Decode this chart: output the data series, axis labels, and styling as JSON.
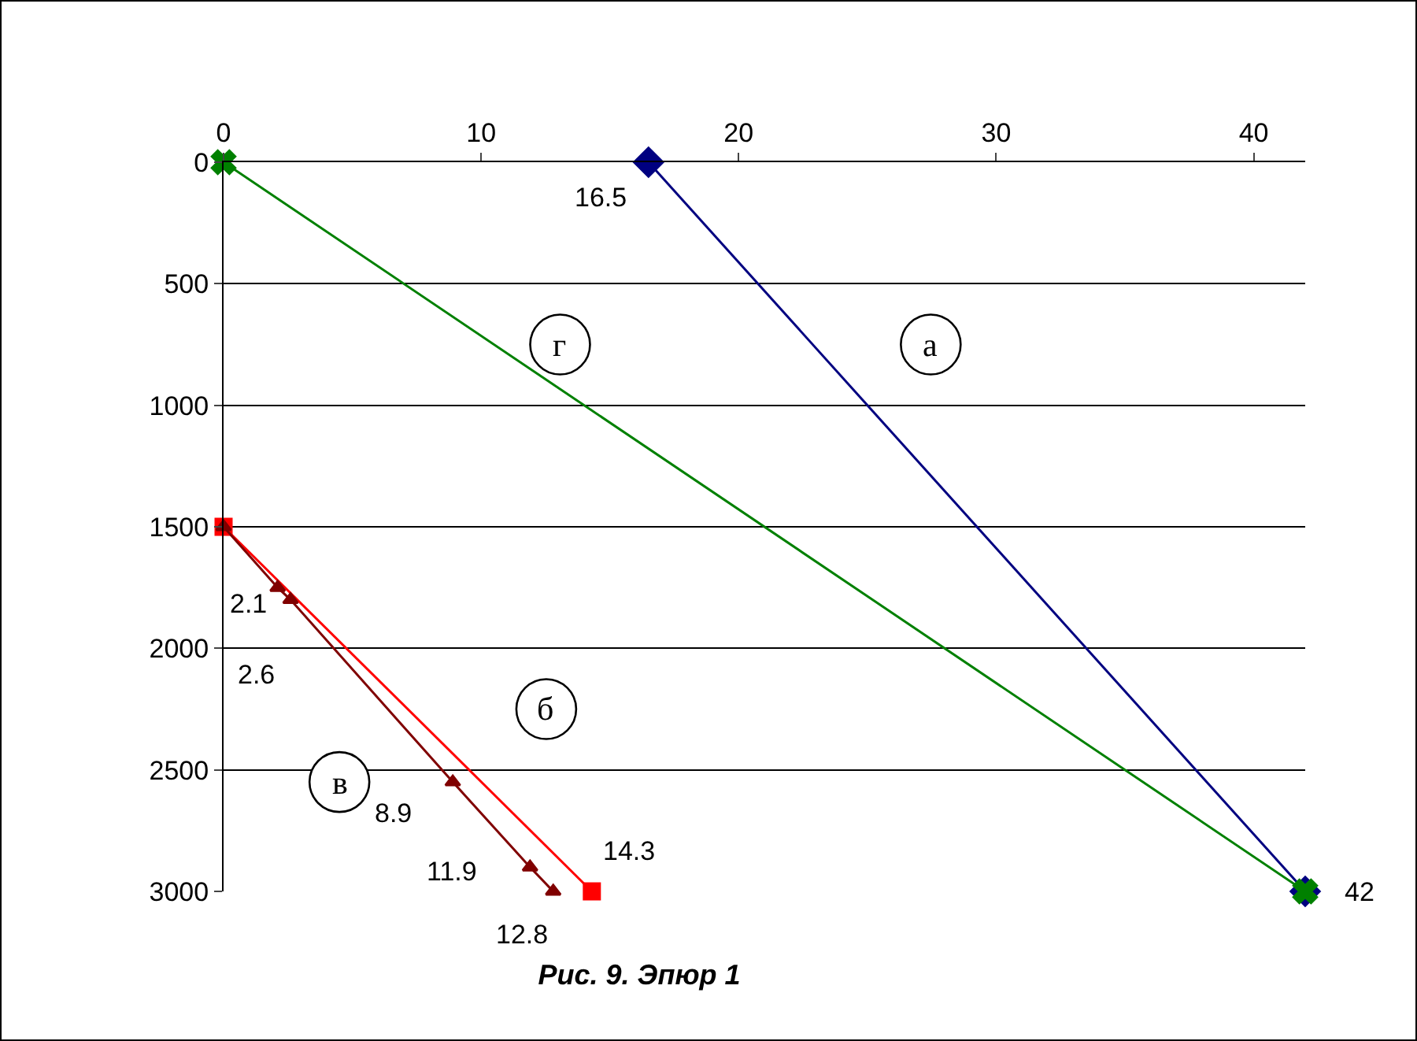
{
  "chart_data": {
    "type": "line",
    "title": "Рис. 9. Эпюр 1",
    "xlim": [
      0,
      42
    ],
    "xticks": [
      0,
      10,
      20,
      30,
      40
    ],
    "ylim": [
      3000,
      0
    ],
    "yticks": [
      0,
      500,
      1000,
      1500,
      2000,
      2500,
      3000
    ],
    "grid": "y",
    "legend": false,
    "series": [
      {
        "name": "а",
        "color": "#000080",
        "marker": "diamond",
        "x": [
          16.5,
          42
        ],
        "values": [
          0,
          3000
        ]
      },
      {
        "name": "г",
        "color": "#008000",
        "marker": "cross",
        "x": [
          0,
          42
        ],
        "values": [
          0,
          3000
        ]
      },
      {
        "name": "б",
        "color": "#ff0000",
        "marker": "square",
        "x": [
          0,
          14.3
        ],
        "values": [
          1500,
          3000
        ]
      },
      {
        "name": "в",
        "color": "#800000",
        "marker": "triangle",
        "x": [
          0,
          2.1,
          2.6,
          8.9,
          11.9,
          12.8
        ],
        "values": [
          1500,
          1750,
          1800,
          2550,
          2900,
          3000
        ]
      }
    ],
    "annotations": [
      {
        "text": "16.5",
        "x": 16.5,
        "y": 0
      },
      {
        "text": "42",
        "x": 42,
        "y": 3000
      },
      {
        "text": "14.3",
        "x": 14.3,
        "y": 3000
      },
      {
        "text": "2.1",
        "x": 2.1,
        "y": 1750
      },
      {
        "text": "2.6",
        "x": 2.6,
        "y": 1800
      },
      {
        "text": "8.9",
        "x": 8.9,
        "y": 2550
      },
      {
        "text": "11.9",
        "x": 11.9,
        "y": 2900
      },
      {
        "text": "12.8",
        "x": 12.8,
        "y": 3000
      }
    ]
  }
}
